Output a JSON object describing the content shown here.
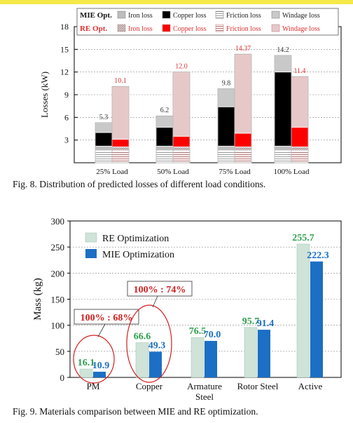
{
  "fig8": {
    "caption": "Fig. 8.  Distribution of predicted losses of different load conditions.",
    "chart_data": {
      "type": "bar",
      "ylabel": "Losses (kW)",
      "ylim": [
        0,
        18
      ],
      "yticks": [
        3,
        6,
        9,
        12,
        15,
        18
      ],
      "categories": [
        "25% Load",
        "50% Load",
        "75% Load",
        "100% Load"
      ],
      "legend": {
        "mie_title": "MIE Opt.",
        "re_title": "RE Opt.",
        "mie_labels": [
          "Iron loss",
          "Copper loss",
          "Friction loss",
          "Windage loss"
        ],
        "re_labels": [
          "Iron loss",
          "Copper loss",
          "Friction loss",
          "Windage loss"
        ]
      },
      "series": [
        {
          "name": "MIE Opt.",
          "totals": [
            5.3,
            6.2,
            9.8,
            14.2
          ],
          "stack": {
            "Friction loss": [
              1.6,
              1.6,
              1.6,
              1.6
            ],
            "Iron loss": [
              0.6,
              0.6,
              0.6,
              0.6
            ],
            "Copper loss": [
              1.8,
              2.5,
              5.2,
              9.8
            ],
            "Windage loss": [
              1.3,
              1.5,
              2.4,
              2.2
            ]
          }
        },
        {
          "name": "RE Opt.",
          "totals": [
            10.1,
            12.0,
            14.37,
            11.4
          ],
          "stack": {
            "Friction loss": [
              1.6,
              1.6,
              1.6,
              1.6
            ],
            "Iron loss": [
              0.5,
              0.5,
              0.5,
              0.5
            ],
            "Copper loss": [
              1.0,
              1.4,
              1.8,
              2.6
            ],
            "Windage loss": [
              7.0,
              8.5,
              10.47,
              6.7
            ]
          }
        }
      ],
      "total_labels_mie": [
        "5.3",
        "6.2",
        "9.8",
        "14.2"
      ],
      "total_labels_re": [
        "10.1",
        "12.0",
        "14.37",
        "11.4"
      ],
      "colors": {
        "iron": "#bdbdbd",
        "copper_mie": "#000000",
        "copper_re": "#ff0000",
        "windage_mie": "#c9c9c9",
        "windage_re": "#e7c8c8",
        "re_label": "#e03030"
      }
    }
  },
  "fig9": {
    "caption": "Fig. 9.  Materials comparison between MIE and RE optimization.",
    "chart_data": {
      "type": "bar",
      "ylabel": "Mass (kg)",
      "ylim": [
        0,
        300
      ],
      "yticks": [
        0,
        50,
        100,
        150,
        200,
        250,
        300
      ],
      "categories": [
        "PM",
        "Copper",
        "Armature Steel",
        "Rotor Steel",
        "Active"
      ],
      "series": [
        {
          "name": "RE Optimization",
          "values": [
            16.1,
            66.6,
            76.5,
            95.7,
            255.7
          ],
          "labels": [
            "16.1",
            "66.6",
            "76.5",
            "95.7",
            "255.7"
          ]
        },
        {
          "name": "MIE Optimization",
          "values": [
            10.9,
            49.3,
            70.0,
            91.4,
            222.3
          ],
          "labels": [
            "10.9",
            "49.3",
            "70.0",
            "91.4",
            "222.3"
          ]
        }
      ],
      "annotations": [
        "100% : 68%",
        "100% : 74%"
      ],
      "colors": {
        "re": "#cfe3d8",
        "mie": "#1b6fc4",
        "re_label": "#2e9e4e",
        "mie_label": "#1b6fc4",
        "annotation": "#d21f1f"
      }
    }
  }
}
